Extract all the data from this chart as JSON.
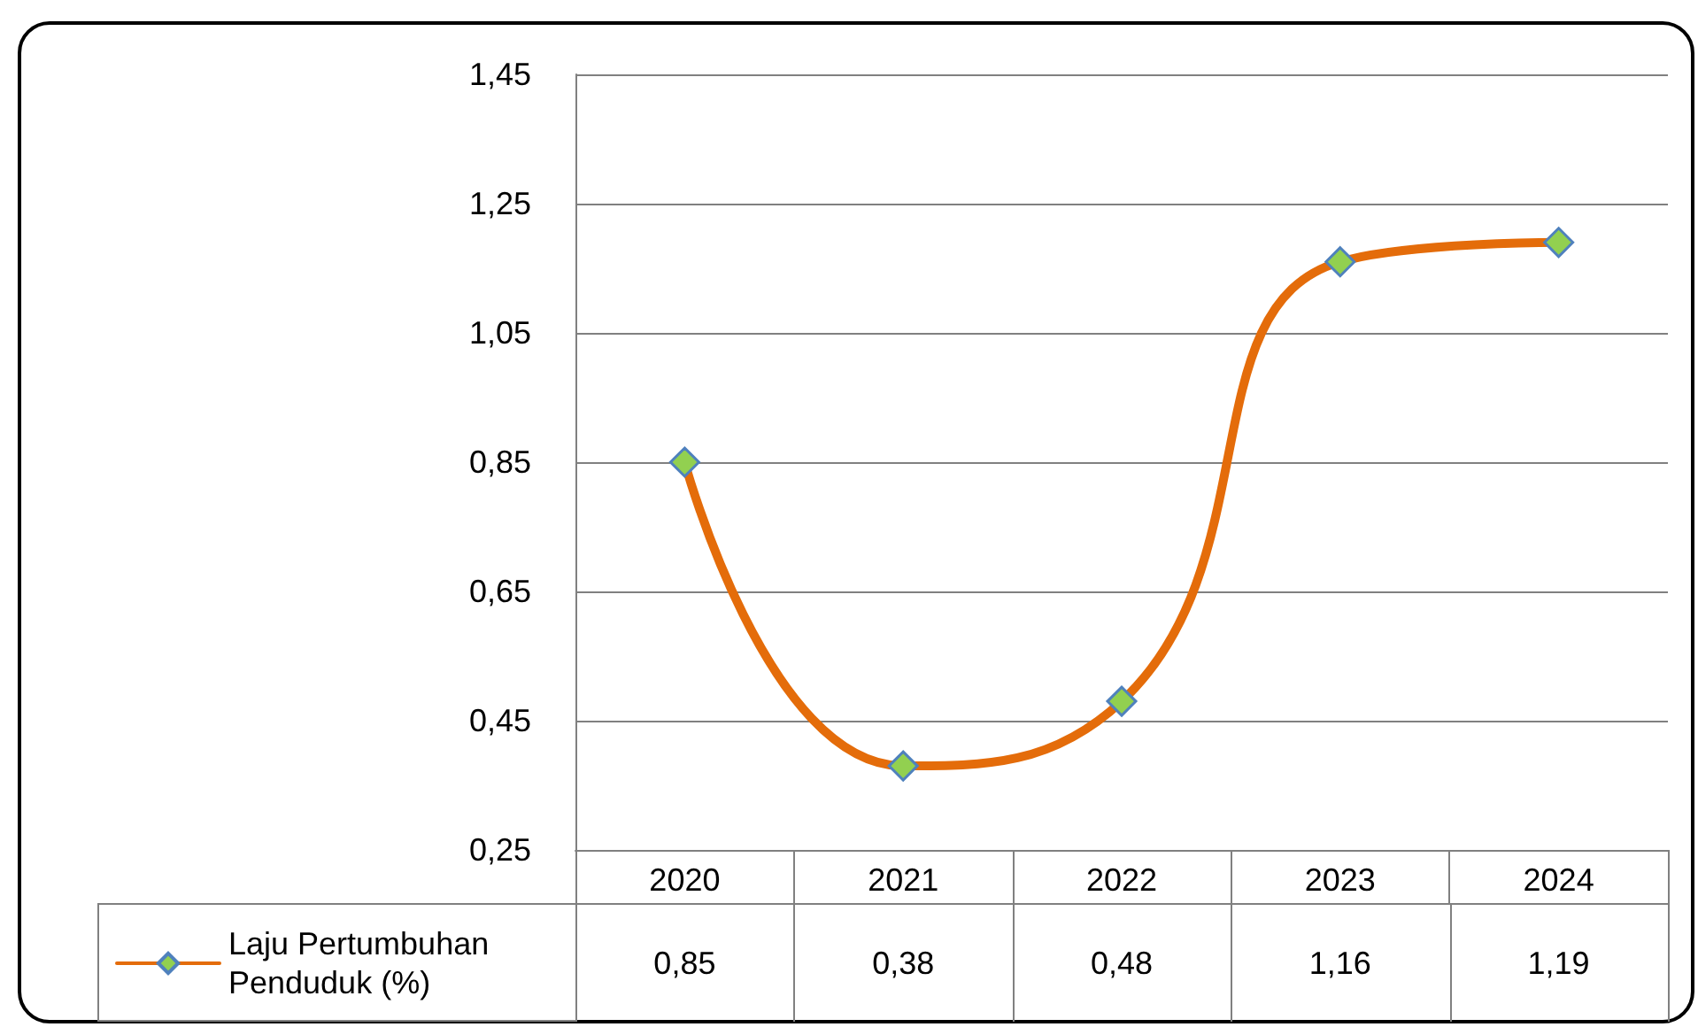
{
  "chart_data": {
    "type": "line",
    "categories": [
      "2020",
      "2021",
      "2022",
      "2023",
      "2024"
    ],
    "series": [
      {
        "name": "Laju Pertumbuhan Penduduk (%)",
        "color": "#e46c0a",
        "values": [
          0.85,
          0.38,
          0.48,
          1.16,
          1.19
        ],
        "value_labels": [
          "0,85",
          "0,38",
          "0,48",
          "1,16",
          "1,19"
        ]
      }
    ],
    "ylim": [
      0.25,
      1.45
    ],
    "yticks": [
      {
        "value": 0.25,
        "label": "0,25"
      },
      {
        "value": 0.45,
        "label": "0,45"
      },
      {
        "value": 0.65,
        "label": "0,65"
      },
      {
        "value": 0.85,
        "label": "0,85"
      },
      {
        "value": 1.05,
        "label": "1,05"
      },
      {
        "value": 1.25,
        "label": "1,25"
      },
      {
        "value": 1.45,
        "label": "1,45"
      }
    ],
    "grid": "y",
    "legend": "bottom left",
    "marker": "diamond",
    "line_style": "solid"
  }
}
